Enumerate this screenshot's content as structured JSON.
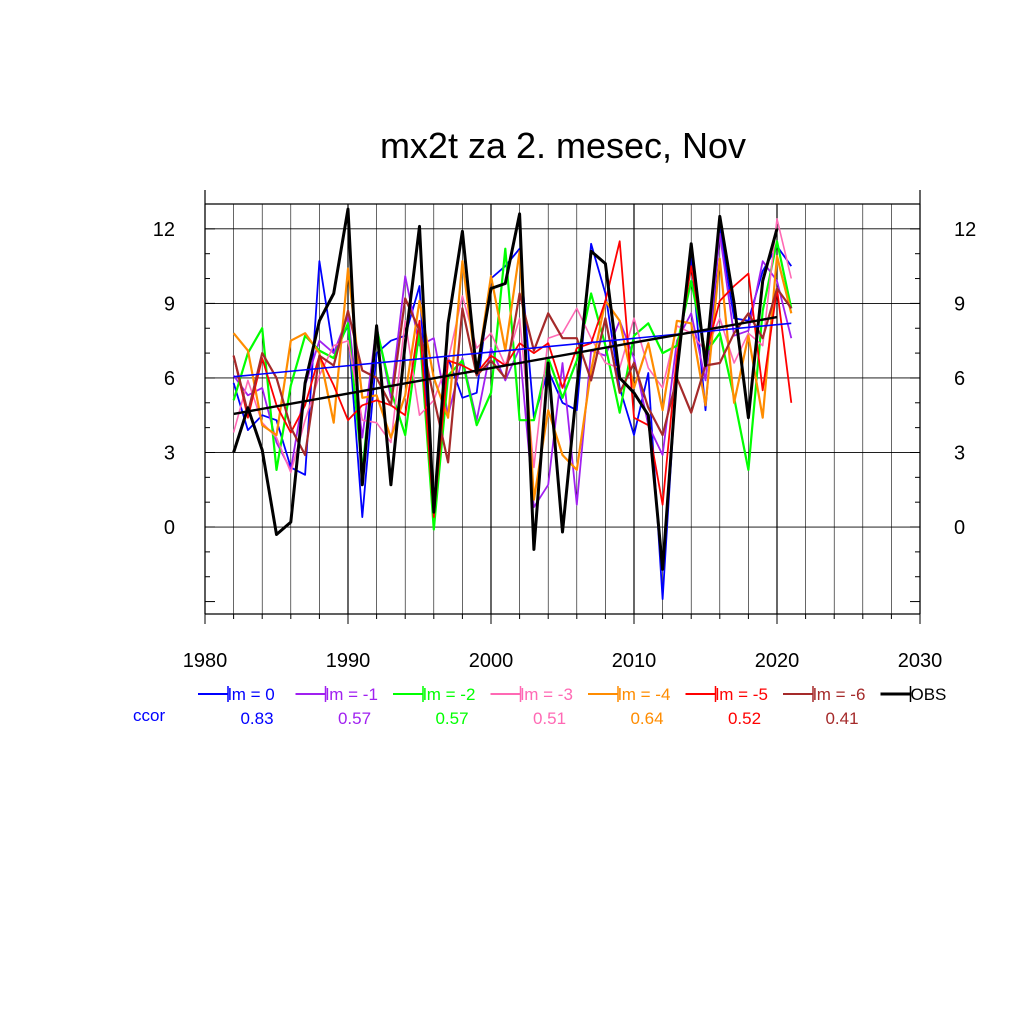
{
  "chart_data": {
    "type": "line",
    "title": "mx2t za 2. mesec, Nov",
    "xlabel": "",
    "ylabel": "",
    "xlim": [
      1980,
      2030
    ],
    "ylim": [
      -3.5,
      13.0
    ],
    "x_ticks": [
      1980,
      1990,
      2000,
      2010,
      2020,
      2030
    ],
    "y_ticks": [
      0,
      3,
      6,
      9,
      12
    ],
    "grid": true,
    "legend_position": "bottom",
    "x": [
      1982,
      1983,
      1984,
      1985,
      1986,
      1987,
      1988,
      1989,
      1990,
      1991,
      1992,
      1993,
      1994,
      1995,
      1996,
      1997,
      1998,
      1999,
      2000,
      2001,
      2002,
      2003,
      2004,
      2005,
      2006,
      2007,
      2008,
      2009,
      2010,
      2011,
      2012,
      2013,
      2014,
      2015,
      2016,
      2017,
      2018,
      2019,
      2020,
      2021
    ],
    "series": [
      {
        "name": "lm = 0",
        "color": "#0000ff",
        "width": 1.8,
        "values": [
          5.8,
          3.9,
          4.5,
          4.3,
          2.4,
          2.1,
          10.7,
          7.0,
          8.1,
          0.4,
          7.0,
          7.5,
          7.7,
          9.7,
          0.4,
          6.8,
          5.2,
          5.4,
          10.0,
          10.5,
          11.2,
          4.4,
          6.3,
          5.0,
          4.7,
          11.4,
          9.4,
          5.6,
          3.7,
          6.2,
          -2.9,
          6.4,
          10.8,
          4.7,
          12.0,
          8.4,
          8.3,
          10.3,
          11.3,
          10.5
        ]
      },
      {
        "name": "lm = -1",
        "color": "#a020f0",
        "width": 1.8,
        "values": [
          6.1,
          5.3,
          5.6,
          3.4,
          2.3,
          5.7,
          7.5,
          7.0,
          8.5,
          3.6,
          8.1,
          5.2,
          10.1,
          7.3,
          7.6,
          4.5,
          6.8,
          4.3,
          7.2,
          5.9,
          7.2,
          0.8,
          1.7,
          6.6,
          0.9,
          7.1,
          6.9,
          8.3,
          6.8,
          4.1,
          2.9,
          7.5,
          8.6,
          5.9,
          11.8,
          7.7,
          7.9,
          10.7,
          9.9,
          7.6
        ]
      },
      {
        "name": "lm = -2",
        "color": "#00ff00",
        "width": 2.2,
        "values": [
          5.1,
          7.0,
          8.0,
          2.3,
          5.7,
          7.7,
          7.1,
          6.8,
          8.2,
          2.2,
          8.0,
          5.5,
          3.7,
          7.9,
          -0.1,
          6.1,
          6.7,
          4.1,
          5.4,
          11.2,
          4.3,
          4.3,
          6.8,
          5.2,
          6.7,
          9.4,
          7.3,
          4.6,
          7.7,
          8.2,
          7.0,
          7.3,
          9.9,
          7.0,
          7.8,
          5.2,
          2.3,
          8.7,
          11.5,
          8.8
        ]
      },
      {
        "name": "lm = -3",
        "color": "#ff69b4",
        "width": 1.6,
        "values": [
          3.8,
          5.9,
          4.2,
          3.6,
          2.2,
          4.3,
          6.1,
          7.3,
          7.5,
          4.3,
          4.2,
          3.4,
          8.3,
          4.5,
          5.1,
          6.7,
          9.3,
          7.2,
          7.8,
          6.5,
          8.4,
          2.4,
          7.6,
          7.8,
          8.8,
          7.6,
          6.6,
          6.4,
          8.4,
          6.4,
          5.6,
          8.1,
          7.8,
          7.1,
          8.4,
          6.6,
          7.8,
          7.3,
          12.4,
          10.0
        ]
      },
      {
        "name": "lm = -4",
        "color": "#ff8c00",
        "width": 2.2,
        "values": [
          7.8,
          7.1,
          4.1,
          3.7,
          7.5,
          7.8,
          7.0,
          4.2,
          10.4,
          5.2,
          5.3,
          3.6,
          5.3,
          9.1,
          6.0,
          4.4,
          10.7,
          6.2,
          10.1,
          7.1,
          11.1,
          1.1,
          4.7,
          2.9,
          2.3,
          6.3,
          9.1,
          8.3,
          5.6,
          7.4,
          4.7,
          8.3,
          8.2,
          4.9,
          10.8,
          5.0,
          7.7,
          4.4,
          10.9,
          8.6
        ]
      },
      {
        "name": "lm = -5",
        "color": "#ff0000",
        "width": 1.8,
        "values": [
          6.9,
          4.4,
          6.8,
          4.9,
          3.8,
          4.9,
          6.9,
          5.7,
          4.3,
          4.9,
          5.1,
          4.9,
          4.5,
          8.3,
          0.4,
          6.7,
          6.5,
          6.2,
          6.9,
          6.5,
          7.4,
          7.0,
          7.4,
          5.6,
          7.2,
          7.4,
          9.1,
          11.5,
          4.4,
          4.1,
          0.9,
          6.9,
          10.5,
          6.9,
          9.1,
          9.7,
          10.2,
          5.5,
          9.6,
          5.0
        ]
      },
      {
        "name": "lm = -6",
        "color": "#a52a2a",
        "width": 2.2,
        "values": [
          6.9,
          4.6,
          7.0,
          6.0,
          4.0,
          2.9,
          6.9,
          6.5,
          8.7,
          6.3,
          6.0,
          4.9,
          9.2,
          7.9,
          5.2,
          2.6,
          8.8,
          6.1,
          6.7,
          6.0,
          9.4,
          7.1,
          8.6,
          7.6,
          7.6,
          5.9,
          8.4,
          5.4,
          6.6,
          4.8,
          3.7,
          6.0,
          4.6,
          6.5,
          6.6,
          7.8,
          8.6,
          7.6,
          9.6,
          8.8
        ]
      },
      {
        "name": "OBS",
        "color": "#000000",
        "width": 3.0,
        "values": [
          3.0,
          4.8,
          3.1,
          -0.3,
          0.2,
          5.8,
          8.3,
          9.4,
          12.8,
          1.7,
          8.1,
          1.7,
          7.4,
          12.1,
          0.6,
          8.2,
          11.9,
          6.2,
          9.6,
          9.8,
          12.6,
          -0.9,
          6.6,
          -0.2,
          5.6,
          11.1,
          10.6,
          6.0,
          5.4,
          4.5,
          -1.7,
          6.2,
          11.4,
          6.5,
          12.5,
          9.0,
          4.4,
          9.9,
          12.0,
          null
        ]
      }
    ],
    "trend_lines": [
      {
        "name": "lm = 0 trend",
        "color": "#0000ff",
        "width": 1.6,
        "x": [
          1982,
          2021
        ],
        "y": [
          6.05,
          8.2
        ]
      },
      {
        "name": "OBS trend",
        "color": "#000000",
        "width": 2.4,
        "x": [
          1982,
          2020
        ],
        "y": [
          4.55,
          8.45
        ]
      }
    ],
    "legend_items": [
      {
        "label": "lm = 0",
        "color": "#0000ff",
        "width": 2
      },
      {
        "label": "lm = -1",
        "color": "#a020f0",
        "width": 2
      },
      {
        "label": "lm = -2",
        "color": "#00ff00",
        "width": 2
      },
      {
        "label": "lm = -3",
        "color": "#ff69b4",
        "width": 2
      },
      {
        "label": "lm = -4",
        "color": "#ff8c00",
        "width": 2
      },
      {
        "label": "lm = -5",
        "color": "#ff0000",
        "width": 2
      },
      {
        "label": "lm = -6",
        "color": "#a52a2a",
        "width": 2
      },
      {
        "label": "OBS",
        "color": "#000000",
        "width": 3
      }
    ],
    "ccor_label": "ccor",
    "ccor_label_color": "#0000ff",
    "ccor_values": [
      "0.83",
      "0.57",
      "0.57",
      "0.51",
      "0.64",
      "0.52",
      "0.41"
    ]
  }
}
